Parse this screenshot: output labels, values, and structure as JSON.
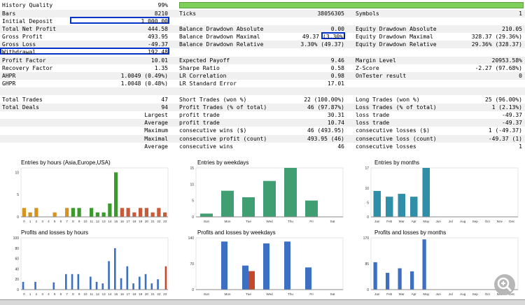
{
  "stats": {
    "history_quality": {
      "label": "History Quality",
      "value": "99%"
    },
    "bars": {
      "label": "Bars",
      "value": "8210"
    },
    "ticks": {
      "label": "Ticks",
      "value": "38056305"
    },
    "symbols": {
      "label": "Symbols",
      "value": "1"
    },
    "initial_deposit": {
      "label": "Initial Deposit",
      "value": "1 000.00"
    },
    "total_net_profit": {
      "label": "Total Net Profit",
      "value": "444.58"
    },
    "bal_dd_abs": {
      "label": "Balance Drawdown Absolute",
      "value": "0.00"
    },
    "eq_dd_abs": {
      "label": "Equity Drawdown Absolute",
      "value": "210.05"
    },
    "gross_profit": {
      "label": "Gross Profit",
      "value": "493.95"
    },
    "bal_dd_max": {
      "label": "Balance Drawdown Maximal",
      "value": "49.37",
      "pct": "(3.30%)"
    },
    "eq_dd_max": {
      "label": "Equity Drawdown Maximal",
      "value": "328.37 (29.36%)"
    },
    "gross_loss": {
      "label": "Gross Loss",
      "value": "-49.37"
    },
    "bal_dd_rel": {
      "label": "Balance Drawdown Relative",
      "value": "3.30% (49.37)"
    },
    "eq_dd_rel": {
      "label": "Equity Drawdown Relative",
      "value": "29.36% (328.37)"
    },
    "withdrawal": {
      "label": "Withdrawal",
      "value": "192.48"
    },
    "profit_factor": {
      "label": "Profit Factor",
      "value": "10.01"
    },
    "expected_payoff": {
      "label": "Expected Payoff",
      "value": "9.46"
    },
    "margin_level": {
      "label": "Margin Level",
      "value": "20953.58%"
    },
    "recovery_factor": {
      "label": "Recovery Factor",
      "value": "1.35"
    },
    "sharpe": {
      "label": "Sharpe Ratio",
      "value": "0.58"
    },
    "zscore": {
      "label": "Z-Score",
      "value": "-2.27 (97.68%)"
    },
    "ahpr": {
      "label": "AHPR",
      "value": "1.0049 (0.49%)"
    },
    "lr_corr": {
      "label": "LR Correlation",
      "value": "0.98"
    },
    "ontester": {
      "label": "OnTester result",
      "value": "0"
    },
    "ghpr": {
      "label": "GHPR",
      "value": "1.0048 (0.48%)"
    },
    "lr_err": {
      "label": "LR Standard Error",
      "value": "17.01"
    },
    "total_trades": {
      "label": "Total Trades",
      "value": "47"
    },
    "short_trades": {
      "label": "Short Trades (won %)",
      "value": "22 (100.00%)"
    },
    "long_trades": {
      "label": "Long Trades (won %)",
      "value": "25 (96.00%)"
    },
    "total_deals": {
      "label": "Total Deals",
      "value": "94"
    },
    "profit_trades": {
      "label": "Profit Trades (% of total)",
      "value": "46 (97.87%)"
    },
    "loss_trades": {
      "label": "Loss Trades (% of total)",
      "value": "1 (2.13%)"
    },
    "largest": {
      "label": "Largest",
      "p_label": "profit trade",
      "p_value": "30.31",
      "l_label": "loss trade",
      "l_value": "-49.37"
    },
    "average": {
      "label": "Average",
      "p_label": "profit trade",
      "p_value": "10.74",
      "l_label": "loss trade",
      "l_value": "-49.37"
    },
    "maximum": {
      "label": "Maximum",
      "p_label": "consecutive wins ($)",
      "p_value": "46 (493.95)",
      "l_label": "consecutive losses ($)",
      "l_value": "1 (-49.37)"
    },
    "maximal": {
      "label": "Maximal",
      "p_label": "consecutive profit (count)",
      "p_value": "493.95 (46)",
      "l_label": "consecutive loss (count)",
      "l_value": "-49.37 (1)"
    },
    "average2": {
      "label": "Average",
      "p_label": "consecutive wins",
      "p_value": "46",
      "l_label": "consecutive losses",
      "l_value": "1"
    }
  },
  "chart_data": [
    {
      "type": "bar",
      "title": "Entries by hours (Asia,Europe,USA)",
      "categories": [
        "0",
        "1",
        "2",
        "3",
        "4",
        "5",
        "6",
        "7",
        "8",
        "9",
        "10",
        "11",
        "12",
        "13",
        "14",
        "15",
        "16",
        "17",
        "18",
        "19",
        "20",
        "21",
        "22",
        "23"
      ],
      "values": [
        2,
        1,
        2,
        0,
        0,
        1,
        0,
        2,
        2,
        2,
        0,
        2,
        1,
        1,
        3,
        10,
        2,
        2,
        1,
        2,
        2,
        1,
        2,
        1
      ],
      "yticks": [
        "0",
        "5",
        "10"
      ],
      "ylim": [
        0,
        11
      ]
    },
    {
      "type": "bar",
      "title": "Entries by weekdays",
      "categories": [
        "Sun",
        "Mon",
        "Tue",
        "Wed",
        "Thu",
        "Fri",
        "Sat"
      ],
      "values": [
        1,
        8,
        6,
        11,
        15,
        5,
        0
      ],
      "yticks": [
        "0",
        "5",
        "10",
        "15"
      ],
      "ylim": [
        0,
        15
      ]
    },
    {
      "type": "bar",
      "title": "Entries by months",
      "categories": [
        "Jan",
        "Feb",
        "Mar",
        "Apr",
        "May",
        "Jun",
        "Jul",
        "Aug",
        "Sep",
        "Oct",
        "Nov",
        "Dec"
      ],
      "values": [
        9,
        7,
        8,
        7,
        17,
        0,
        0,
        0,
        0,
        0,
        0,
        0
      ],
      "yticks": [
        "0",
        "5",
        "10",
        "17"
      ],
      "ylim": [
        0,
        17
      ]
    },
    {
      "type": "bar",
      "title": "Profits and losses by hours",
      "categories": [
        "0",
        "1",
        "2",
        "3",
        "4",
        "5",
        "6",
        "7",
        "8",
        "9",
        "10",
        "11",
        "12",
        "13",
        "14",
        "15",
        "16",
        "17",
        "18",
        "19",
        "20",
        "21",
        "22",
        "23"
      ],
      "series": [
        {
          "values": [
            15,
            0,
            15,
            0,
            0,
            14,
            0,
            30,
            30,
            30,
            0,
            25,
            15,
            12,
            55,
            80,
            22,
            45,
            12,
            25,
            30,
            12,
            20,
            0
          ]
        },
        {
          "values": [
            0,
            0,
            0,
            0,
            0,
            0,
            0,
            0,
            0,
            0,
            0,
            0,
            0,
            0,
            0,
            0,
            0,
            0,
            0,
            0,
            0,
            0,
            0,
            45
          ]
        }
      ],
      "yticks": [
        "0",
        "20",
        "40",
        "60",
        "80",
        "100"
      ],
      "ylim": [
        0,
        100
      ]
    },
    {
      "type": "bar",
      "title": "Profits and losses by weekdays",
      "categories": [
        "Sun",
        "Mon",
        "Tue",
        "Wed",
        "Thu",
        "Fri",
        "Sat"
      ],
      "series": [
        {
          "values": [
            0,
            130,
            65,
            125,
            130,
            60,
            0
          ]
        },
        {
          "values": [
            0,
            0,
            50,
            0,
            0,
            0,
            0
          ]
        }
      ],
      "yticks": [
        "0",
        "70",
        "140"
      ],
      "ylim": [
        0,
        140
      ]
    },
    {
      "type": "bar",
      "title": "Profits and losses by months",
      "categories": [
        "Jan",
        "Feb",
        "Mar",
        "Apr",
        "May",
        "Jun",
        "Jul",
        "Aug",
        "Sep",
        "Oct",
        "Nov",
        "Dec"
      ],
      "series": [
        {
          "values": [
            90,
            55,
            70,
            60,
            165,
            0,
            0,
            0,
            0,
            0,
            0,
            0
          ]
        },
        {
          "values": [
            0,
            0,
            0,
            0,
            0,
            0,
            0,
            0,
            0,
            0,
            0,
            0
          ]
        }
      ],
      "yticks": [
        "0",
        "85",
        "170"
      ],
      "ylim": [
        0,
        170
      ]
    }
  ],
  "colors": {
    "asia": "#d6941e",
    "europe": "#3a9b2c",
    "usa": "#c95a3a",
    "weekday": "#3f9e72",
    "month": "#2f8ea8",
    "profit": "#3d6fc2",
    "loss": "#c24a2a",
    "highlight": "#0033cc"
  }
}
